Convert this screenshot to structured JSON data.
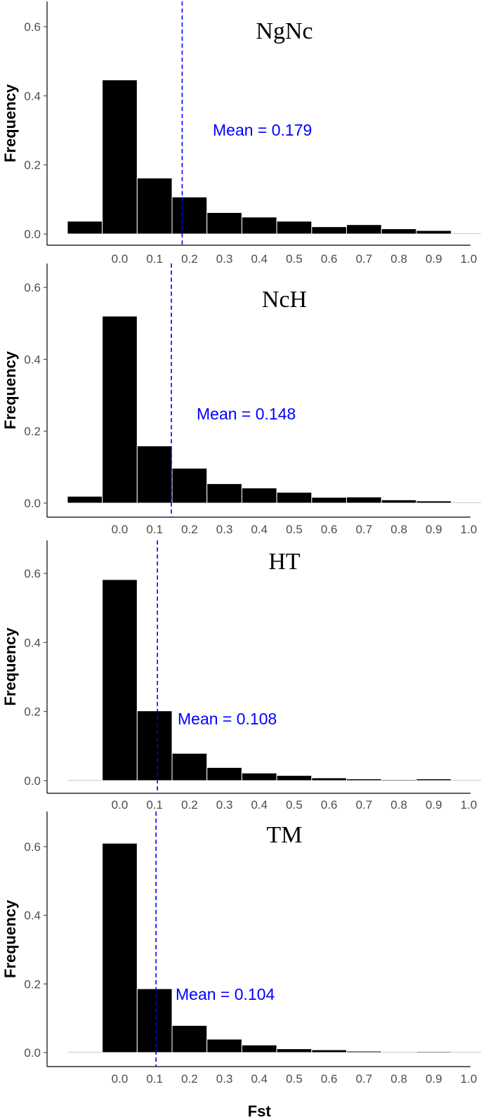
{
  "chart_data": [
    {
      "type": "bar",
      "title": "NgNc",
      "ylabel": "Frequency",
      "xlabel": "",
      "ylim": [
        0,
        0.65
      ],
      "yticks": [
        "0.0",
        "0.2",
        "0.4",
        "0.6"
      ],
      "xticks": [
        "0.0",
        "0.1",
        "0.2",
        "0.3",
        "0.4",
        "0.5",
        "0.6",
        "0.7",
        "0.8",
        "0.9",
        "1.0"
      ],
      "bin_centers": [
        -0.1,
        0.0,
        0.1,
        0.2,
        0.3,
        0.4,
        0.5,
        0.6,
        0.7,
        0.8,
        0.9,
        1.0
      ],
      "values": [
        0.037,
        0.446,
        0.162,
        0.107,
        0.062,
        0.049,
        0.037,
        0.021,
        0.027,
        0.015,
        0.01,
        0.0
      ],
      "mean": 0.179,
      "mean_label": "Mean = 0.179",
      "mean_color": "#0000ff"
    },
    {
      "type": "bar",
      "title": "NcH",
      "ylabel": "Frequency",
      "xlabel": "",
      "ylim": [
        0,
        0.65
      ],
      "yticks": [
        "0.0",
        "0.2",
        "0.4",
        "0.6"
      ],
      "xticks": [
        "0.0",
        "0.1",
        "0.2",
        "0.3",
        "0.4",
        "0.5",
        "0.6",
        "0.7",
        "0.8",
        "0.9",
        "1.0"
      ],
      "bin_centers": [
        -0.1,
        0.0,
        0.1,
        0.2,
        0.3,
        0.4,
        0.5,
        0.6,
        0.7,
        0.8,
        0.9,
        1.0
      ],
      "values": [
        0.019,
        0.52,
        0.159,
        0.097,
        0.054,
        0.042,
        0.03,
        0.016,
        0.017,
        0.009,
        0.006,
        0.0
      ],
      "mean": 0.148,
      "mean_label": "Mean = 0.148",
      "mean_color": "#0000ff"
    },
    {
      "type": "bar",
      "title": "HT",
      "ylabel": "Frequency",
      "xlabel": "",
      "ylim": [
        0,
        0.65
      ],
      "yticks": [
        "0.0",
        "0.2",
        "0.4",
        "0.6"
      ],
      "xticks": [
        "0.0",
        "0.1",
        "0.2",
        "0.3",
        "0.4",
        "0.5",
        "0.6",
        "0.7",
        "0.8",
        "0.9",
        "1.0"
      ],
      "bin_centers": [
        -0.1,
        0.0,
        0.1,
        0.2,
        0.3,
        0.4,
        0.5,
        0.6,
        0.7,
        0.8,
        0.9,
        1.0
      ],
      "values": [
        0.002,
        0.582,
        0.202,
        0.079,
        0.038,
        0.022,
        0.015,
        0.008,
        0.005,
        0.003,
        0.005,
        0.0
      ],
      "mean": 0.108,
      "mean_label": "Mean = 0.108",
      "mean_color": "#0000ff"
    },
    {
      "type": "bar",
      "title": "TM",
      "ylabel": "Frequency",
      "xlabel": "Fst",
      "ylim": [
        0,
        0.65
      ],
      "yticks": [
        "0.0",
        "0.2",
        "0.4",
        "0.6"
      ],
      "xticks": [
        "0.0",
        "0.1",
        "0.2",
        "0.3",
        "0.4",
        "0.5",
        "0.6",
        "0.7",
        "0.8",
        "0.9",
        "1.0"
      ],
      "bin_centers": [
        -0.1,
        0.0,
        0.1,
        0.2,
        0.3,
        0.4,
        0.5,
        0.6,
        0.7,
        0.8,
        0.9,
        1.0
      ],
      "values": [
        0.001,
        0.61,
        0.186,
        0.079,
        0.039,
        0.022,
        0.011,
        0.008,
        0.004,
        0.002,
        0.003,
        0.0
      ],
      "mean": 0.104,
      "mean_label": "Mean = 0.104",
      "mean_color": "#0000ff"
    }
  ]
}
